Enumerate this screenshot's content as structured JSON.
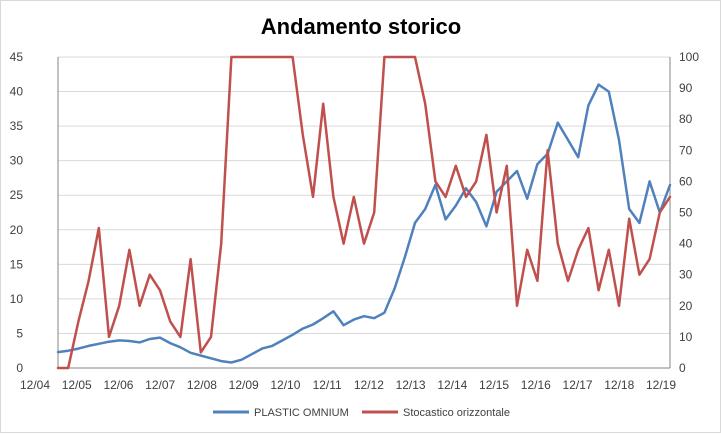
{
  "chart_data": {
    "type": "line",
    "title": "Andamento storico",
    "xlabel": "",
    "ylabel": "",
    "x_ticks": [
      "12/04",
      "12/05",
      "12/06",
      "12/07",
      "12/08",
      "12/09",
      "12/10",
      "12/11",
      "12/12",
      "12/13",
      "12/14",
      "12/15",
      "12/16",
      "12/17",
      "12/18",
      "12/19"
    ],
    "y_left": {
      "ticks": [
        0,
        5,
        10,
        15,
        20,
        25,
        30,
        35,
        40,
        45
      ],
      "range": [
        0,
        45
      ]
    },
    "y_right": {
      "ticks": [
        0,
        10,
        20,
        30,
        40,
        50,
        60,
        70,
        80,
        90,
        100
      ],
      "range": [
        0,
        100
      ]
    },
    "grid": "horizontal",
    "legend_position": "bottom",
    "x": [
      "12/04",
      "03/05",
      "06/05",
      "09/05",
      "12/05",
      "03/06",
      "06/06",
      "09/06",
      "12/06",
      "03/07",
      "06/07",
      "09/07",
      "12/07",
      "03/08",
      "06/08",
      "09/08",
      "12/08",
      "03/09",
      "06/09",
      "09/09",
      "12/09",
      "03/10",
      "06/10",
      "09/10",
      "12/10",
      "03/11",
      "06/11",
      "09/11",
      "12/11",
      "03/12",
      "06/12",
      "09/12",
      "12/12",
      "03/13",
      "06/13",
      "09/13",
      "12/13",
      "03/14",
      "06/14",
      "09/14",
      "12/14",
      "03/15",
      "06/15",
      "09/15",
      "12/15",
      "03/16",
      "06/16",
      "09/16",
      "12/16",
      "03/17",
      "06/17",
      "09/17",
      "12/17",
      "03/18",
      "06/18",
      "09/18",
      "12/18",
      "03/19",
      "06/19",
      "09/19",
      "12/19"
    ],
    "series": [
      {
        "name": "PLASTIC OMNIUM",
        "axis": "left",
        "color": "#4f81bd",
        "values": [
          2.3,
          2.5,
          2.8,
          3.2,
          3.5,
          3.8,
          4.0,
          3.9,
          3.7,
          4.2,
          4.4,
          3.6,
          3.0,
          2.2,
          1.8,
          1.4,
          1.0,
          0.8,
          1.2,
          2.0,
          2.8,
          3.2,
          4.0,
          4.8,
          5.7,
          6.3,
          7.2,
          8.2,
          6.2,
          7.0,
          7.5,
          7.2,
          8.0,
          11.5,
          16.0,
          21.0,
          23.0,
          26.5,
          21.5,
          23.5,
          26.0,
          24.0,
          20.5,
          25.5,
          27.0,
          28.5,
          24.5,
          29.5,
          31.0,
          35.5,
          33.0,
          30.5,
          38.0,
          41.0,
          40.0,
          33.0,
          23.0,
          21.0,
          27.0,
          22.5,
          26.5
        ]
      },
      {
        "name": "Stocastico orizzontale",
        "axis": "right",
        "color": "#c0504d",
        "values": [
          0,
          0,
          15,
          28,
          45,
          10,
          20,
          38,
          20,
          30,
          25,
          15,
          10,
          35,
          5,
          10,
          40,
          100,
          100,
          100,
          100,
          100,
          100,
          100,
          75,
          55,
          85,
          55,
          40,
          55,
          40,
          50,
          100,
          100,
          100,
          100,
          85,
          60,
          55,
          65,
          55,
          60,
          75,
          50,
          65,
          20,
          38,
          28,
          70,
          40,
          28,
          38,
          45,
          25,
          38,
          20,
          48,
          30,
          35,
          50,
          55
        ]
      }
    ]
  }
}
